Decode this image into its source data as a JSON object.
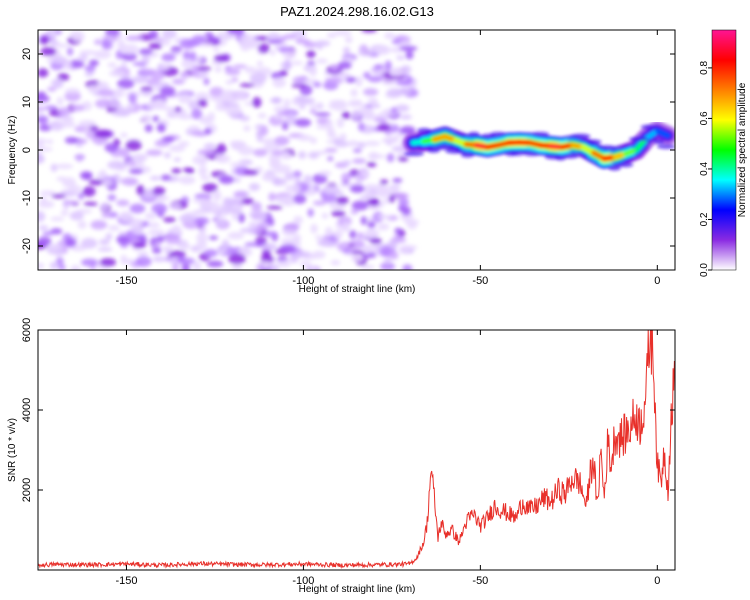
{
  "title": "PAZ1.2024.298.16.02.G13",
  "chart_data": [
    {
      "type": "heatmap",
      "xlabel": "Height of straight line (km)",
      "ylabel": "Frequency (Hz)",
      "xlim": [
        -175,
        5
      ],
      "ylim": [
        -25,
        25
      ],
      "xticks": [
        -150,
        -100,
        -50,
        0
      ],
      "yticks": [
        -20,
        -10,
        0,
        10,
        20
      ],
      "colorbar": {
        "label": "Normalized spectral amplitude",
        "range": [
          0,
          0.95
        ],
        "ticks": [
          0.0,
          0.2,
          0.4,
          0.6,
          0.8
        ],
        "tick_labels": [
          "0.0",
          "0.2",
          "0.4",
          "0.6",
          "0.8"
        ],
        "colormap": [
          "#ffffff",
          "#8a2be2",
          "#0000ff",
          "#00ffff",
          "#00ff00",
          "#ffff00",
          "#ff7f00",
          "#ff0000",
          "#ff1493"
        ]
      },
      "noise_region": {
        "x_range": [
          -175,
          -69
        ],
        "amplitude_range": [
          0.0,
          0.15
        ],
        "color": "#9b30ff"
      },
      "signal_ridge": {
        "x": [
          -69,
          -66,
          -63,
          -60,
          -57,
          -54,
          -51,
          -48,
          -45,
          -42,
          -39,
          -36,
          -33,
          -30,
          -27,
          -24,
          -21,
          -18,
          -15,
          -12,
          -9,
          -6,
          -3,
          0,
          3
        ],
        "freq": [
          1.5,
          1.8,
          2.2,
          2.8,
          2.0,
          1.2,
          1.0,
          0.6,
          1.0,
          1.5,
          1.6,
          1.5,
          1.0,
          0.8,
          0.6,
          1.0,
          0.6,
          -0.6,
          -1.8,
          -1.5,
          -0.8,
          0.0,
          2.5,
          4.0,
          3.0
        ],
        "amp": [
          0.3,
          0.45,
          0.55,
          0.8,
          0.55,
          0.6,
          0.85,
          0.9,
          0.7,
          0.85,
          0.8,
          0.85,
          0.7,
          0.9,
          0.85,
          0.75,
          0.6,
          0.55,
          0.9,
          0.75,
          0.55,
          0.5,
          0.35,
          0.3,
          0.25
        ]
      }
    },
    {
      "type": "line",
      "xlabel": "Height of straight line (km)",
      "ylabel": "SNR (10 * v/v)",
      "xlim": [
        -175,
        5
      ],
      "ylim": [
        0,
        6000
      ],
      "xticks": [
        -150,
        -100,
        -50,
        0
      ],
      "yticks": [
        2000,
        4000,
        6000
      ],
      "color": "#e8302a",
      "series": [
        {
          "x": [
            -175,
            -170,
            -160,
            -150,
            -140,
            -130,
            -120,
            -110,
            -100,
            -90,
            -80,
            -70,
            -68,
            -66,
            -65,
            -64,
            -63,
            -62,
            -61,
            -60,
            -58,
            -56,
            -54,
            -52,
            -50,
            -48,
            -46,
            -44,
            -42,
            -40,
            -38,
            -36,
            -34,
            -32,
            -30,
            -28,
            -26,
            -24,
            -22,
            -20,
            -19,
            -18,
            -17,
            -16,
            -15,
            -14,
            -13,
            -12,
            -10,
            -8,
            -6,
            -5,
            -4,
            -3,
            -2,
            -1,
            0,
            1,
            2,
            3,
            4,
            5
          ],
          "y": [
            120,
            140,
            130,
            150,
            120,
            160,
            140,
            130,
            150,
            120,
            130,
            150,
            300,
            700,
            1200,
            2500,
            1800,
            800,
            1200,
            900,
            1000,
            700,
            1200,
            1400,
            1100,
            1300,
            1600,
            1500,
            1400,
            1300,
            1700,
            1500,
            1600,
            1800,
            1700,
            2000,
            1900,
            2300,
            2200,
            1600,
            2400,
            2800,
            1500,
            3000,
            1800,
            3200,
            2600,
            3400,
            3300,
            3500,
            3900,
            3600,
            4000,
            4600,
            6050,
            5200,
            2600,
            2200,
            3000,
            2000,
            3900,
            5000
          ]
        }
      ]
    }
  ]
}
